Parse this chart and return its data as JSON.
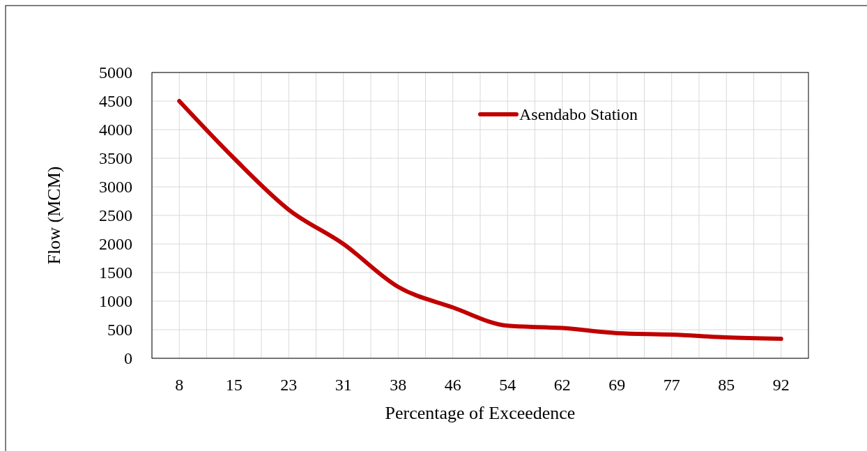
{
  "chart_data": {
    "type": "line",
    "xlabel": "Percentage of Exceedence",
    "ylabel": "Flow (MCM)",
    "categories": [
      "8",
      "15",
      "23",
      "31",
      "38",
      "46",
      "54",
      "62",
      "69",
      "77",
      "85",
      "92"
    ],
    "series": [
      {
        "name": "Asendabo Station",
        "color": "#c00000",
        "values": [
          4500,
          3500,
          2600,
          2000,
          1250,
          890,
          570,
          530,
          440,
          415,
          366,
          340
        ]
      }
    ],
    "ylim": [
      0,
      5000
    ],
    "yticks": [
      0,
      500,
      1000,
      1500,
      2000,
      2500,
      3000,
      3500,
      4000,
      4500,
      5000
    ],
    "grid": true,
    "legend": "top right",
    "marker": "none",
    "line_style": "solid"
  }
}
